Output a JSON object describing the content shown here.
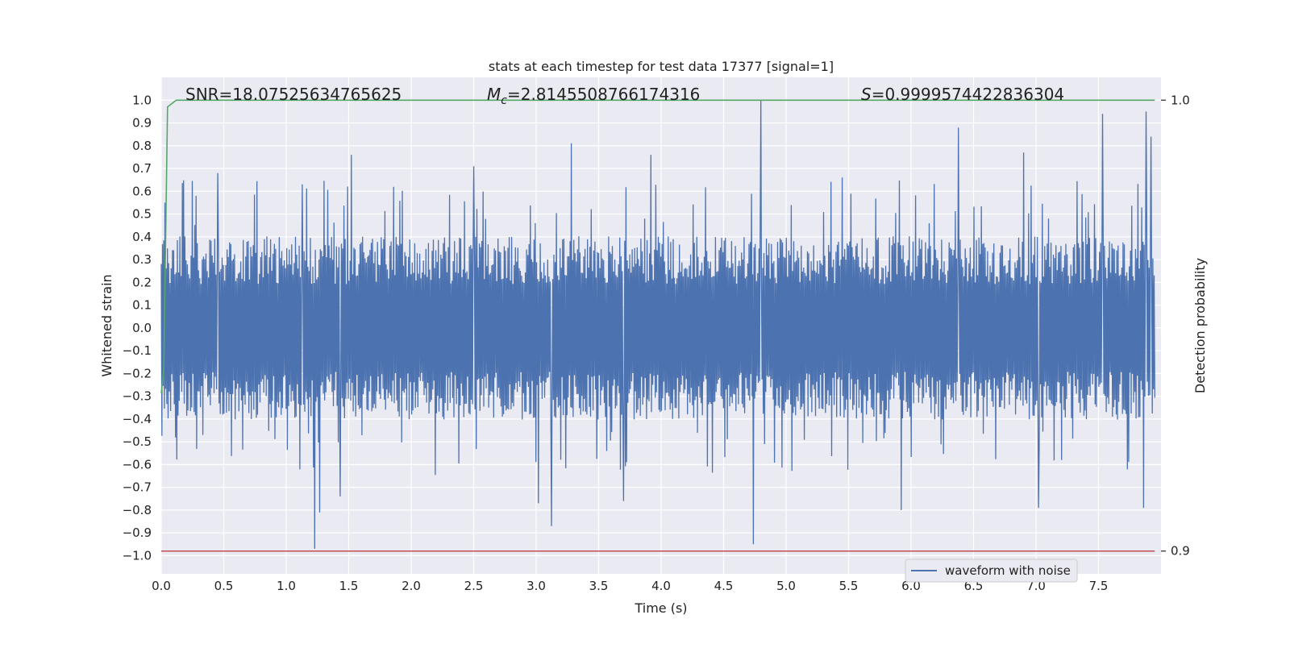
{
  "chart_data": {
    "type": "line",
    "title": "stats at each timestep for test data 17377 [signal=1]",
    "xlabel": "Time (s)",
    "ylabel": "Whitened strain",
    "y2label": "Detection probability",
    "xlim": [
      0.0,
      8.0
    ],
    "ylim": [
      -1.08,
      1.1
    ],
    "y2lim": [
      0.9,
      1.0
    ],
    "xticks": [
      "0.0",
      "0.5",
      "1.0",
      "1.5",
      "2.0",
      "2.5",
      "3.0",
      "3.5",
      "4.0",
      "4.5",
      "5.0",
      "5.5",
      "6.0",
      "6.5",
      "7.0",
      "7.5"
    ],
    "yticks": [
      "1.0",
      "0.9",
      "0.8",
      "0.7",
      "0.6",
      "0.5",
      "0.4",
      "0.3",
      "0.2",
      "0.1",
      "0.0",
      "−0.1",
      "−0.2",
      "−0.3",
      "−0.4",
      "−0.5",
      "−0.6",
      "−0.7",
      "−0.8",
      "−0.9",
      "−1.0"
    ],
    "y2ticks": [
      "1.0",
      "0.9"
    ],
    "grid": true,
    "legend": {
      "position": "lower-right",
      "entries": [
        "waveform with noise"
      ]
    },
    "annotations": {
      "snr": "SNR=18.07525634765625",
      "mc_symbol": "M",
      "mc_subscript": "c",
      "mc_value": "=2.8145508766174316",
      "s_symbol": "S",
      "s_value": "=0.9999574422836304"
    },
    "series": [
      {
        "name": "waveform with noise",
        "color": "#4c72b0",
        "axis": "left",
        "envelope": {
          "sample_count": 1600,
          "typical_amplitude": 0.35,
          "peaks": [
            {
              "x": 0.03,
              "y": 0.55
            },
            {
              "x": 0.45,
              "y": 0.68
            },
            {
              "x": 1.13,
              "y": 0.63
            },
            {
              "x": 1.52,
              "y": 0.76
            },
            {
              "x": 2.5,
              "y": 0.71
            },
            {
              "x": 3.28,
              "y": 0.81
            },
            {
              "x": 3.92,
              "y": 0.76
            },
            {
              "x": 4.8,
              "y": 1.0
            },
            {
              "x": 5.45,
              "y": 0.66
            },
            {
              "x": 6.38,
              "y": 0.88
            },
            {
              "x": 6.9,
              "y": 0.77
            },
            {
              "x": 7.53,
              "y": 0.94
            },
            {
              "x": 7.88,
              "y": 0.95
            },
            {
              "x": 7.92,
              "y": 0.84
            },
            {
              "x": 1.23,
              "y": -0.97
            },
            {
              "x": 4.74,
              "y": -0.95
            },
            {
              "x": 3.12,
              "y": -0.87
            },
            {
              "x": 5.92,
              "y": -0.8
            },
            {
              "x": 7.02,
              "y": -0.79
            },
            {
              "x": 7.86,
              "y": -0.79
            },
            {
              "x": 3.02,
              "y": -0.77
            },
            {
              "x": 1.43,
              "y": -0.74
            },
            {
              "x": 1.27,
              "y": -0.81
            },
            {
              "x": 3.7,
              "y": -0.76
            }
          ]
        }
      },
      {
        "name": "",
        "color": "#55a868",
        "axis": "right",
        "x": [
          0.0,
          0.02,
          0.05,
          0.12,
          8.0
        ],
        "y": [
          0.935,
          0.94,
          0.9985,
          1.0,
          1.0
        ]
      },
      {
        "name": "",
        "color": "#c44e52",
        "axis": "left",
        "x": [
          0.0,
          8.0
        ],
        "y": [
          -0.98,
          -0.98
        ]
      }
    ]
  }
}
